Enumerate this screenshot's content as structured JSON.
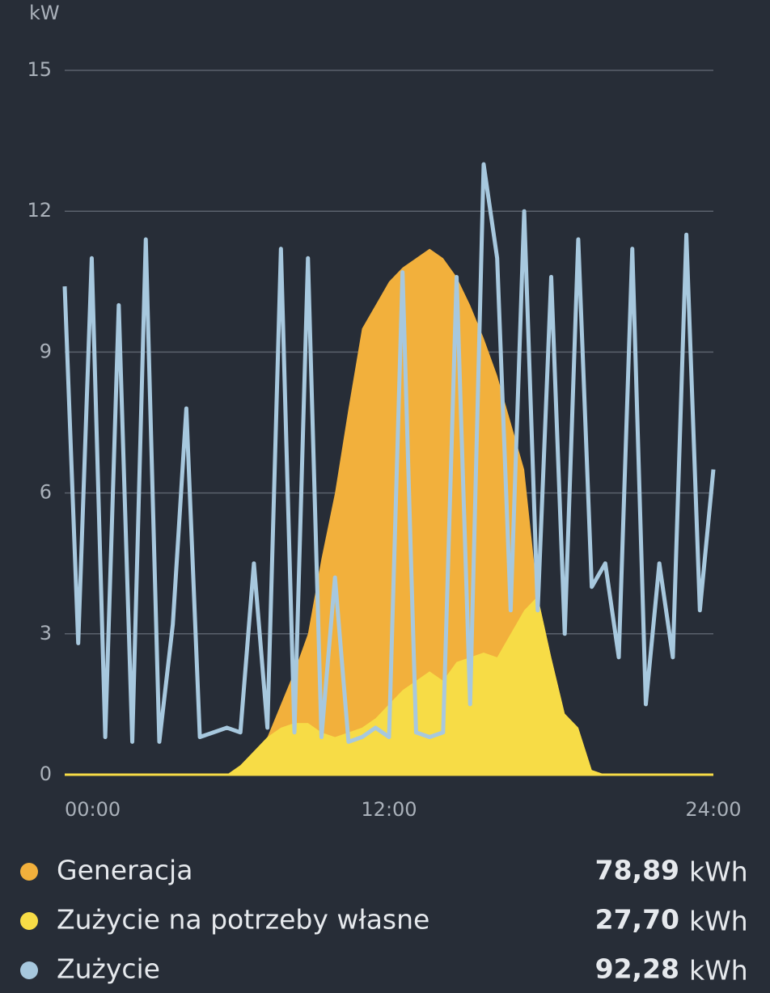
{
  "chart_data": {
    "type": "area-line",
    "y_label": "kW",
    "x": [
      0,
      0.5,
      1,
      1.5,
      2,
      2.5,
      3,
      3.5,
      4,
      4.5,
      5,
      5.5,
      6,
      6.5,
      7,
      7.5,
      8,
      8.5,
      9,
      9.5,
      10,
      10.5,
      11,
      11.5,
      12,
      12.5,
      13,
      13.5,
      14,
      14.5,
      15,
      15.5,
      16,
      16.5,
      17,
      17.5,
      18,
      18.5,
      19,
      19.5,
      20,
      20.5,
      21,
      21.5,
      22,
      22.5,
      23,
      23.5,
      24
    ],
    "xlim": [
      0,
      24
    ],
    "xticks": [
      {
        "value": 0,
        "label": "00:00"
      },
      {
        "value": 12,
        "label": "12:00"
      },
      {
        "value": 24,
        "label": "24:00"
      }
    ],
    "ylim": [
      0,
      15
    ],
    "yticks": [
      0,
      3,
      6,
      9,
      12,
      15
    ],
    "grid": true,
    "series": [
      {
        "name": "Generacja",
        "color": "#f2b03c",
        "kind": "area",
        "values": [
          0,
          0,
          0,
          0,
          0,
          0,
          0,
          0,
          0,
          0,
          0,
          0,
          0,
          0.2,
          0.5,
          0.8,
          1.5,
          2.2,
          3,
          4.6,
          6,
          7.8,
          9.5,
          10,
          10.5,
          10.8,
          11,
          11.2,
          11,
          10.6,
          10,
          9.3,
          8.5,
          7.5,
          6.5,
          3.8,
          2.5,
          1.3,
          1,
          0.1,
          0,
          0,
          0,
          0,
          0,
          0,
          0,
          0,
          0
        ],
        "total": 78.89,
        "total_label": "78,89"
      },
      {
        "name": "Zużycie na potrzeby własne",
        "color": "#f7dc46",
        "kind": "area",
        "values": [
          0,
          0,
          0,
          0,
          0,
          0,
          0,
          0,
          0,
          0,
          0,
          0,
          0,
          0.2,
          0.5,
          0.8,
          1,
          1.1,
          1.1,
          0.9,
          0.8,
          0.9,
          1,
          1.2,
          1.5,
          1.8,
          2,
          2.2,
          2,
          2.4,
          2.5,
          2.6,
          2.5,
          3,
          3.5,
          3.8,
          2.5,
          1.3,
          1,
          0.1,
          0,
          0,
          0,
          0,
          0,
          0,
          0,
          0,
          0
        ],
        "total": 27.7,
        "total_label": "27,70"
      },
      {
        "name": "Zużycie",
        "color": "#a7c8de",
        "kind": "line",
        "values": [
          10.4,
          2.8,
          11,
          0.8,
          10,
          0.7,
          11.4,
          0.7,
          3.2,
          7.8,
          0.8,
          0.9,
          1,
          0.9,
          4.5,
          1,
          11.2,
          0.9,
          11,
          0.8,
          4.2,
          0.7,
          0.8,
          1,
          0.8,
          10.7,
          0.9,
          0.8,
          0.9,
          10.6,
          1.5,
          13,
          11,
          3.5,
          12,
          3.5,
          10.6,
          3,
          11.4,
          4,
          4.5,
          2.5,
          11.2,
          1.5,
          4.5,
          2.5,
          11.5,
          3.5,
          6.5
        ],
        "total": 92.28,
        "total_label": "92,28"
      }
    ],
    "total_unit": "kWh"
  }
}
